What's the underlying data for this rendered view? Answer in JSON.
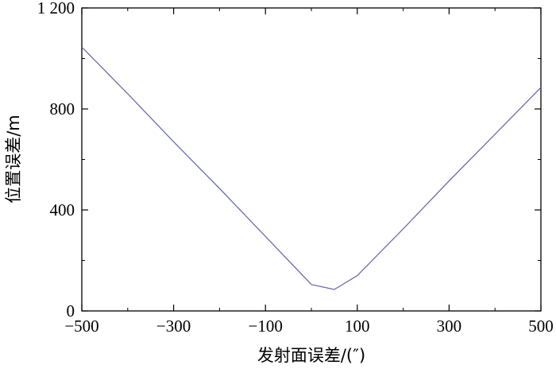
{
  "chart_data": {
    "type": "line",
    "title": "",
    "xlabel": "发射面误差/(″)",
    "ylabel": "位置误差/m",
    "xlim": [
      -500,
      500
    ],
    "ylim": [
      0,
      1200
    ],
    "xticks": [
      -500,
      -300,
      -100,
      100,
      300,
      500
    ],
    "xtick_labels": [
      "−500",
      "−300",
      "−100",
      "100",
      "300",
      "500"
    ],
    "yticks": [
      0,
      400,
      800,
      1200
    ],
    "ytick_labels": [
      "0",
      "400",
      "800",
      "1 200"
    ],
    "grid": false,
    "series": [
      {
        "color": "#6b6bb5",
        "x": [
          -500,
          -400,
          -300,
          -200,
          -100,
          0,
          50,
          100,
          200,
          300,
          400,
          500
        ],
        "y": [
          1045,
          860,
          670,
          485,
          295,
          105,
          85,
          140,
          325,
          515,
          700,
          885
        ]
      }
    ]
  }
}
